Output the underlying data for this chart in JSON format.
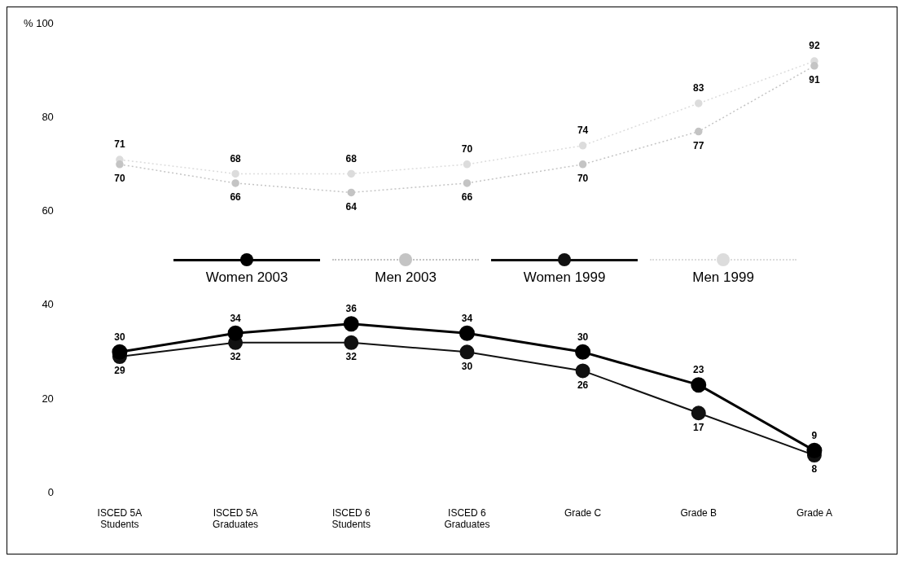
{
  "chart_data": {
    "type": "line",
    "categories": [
      "ISCED 5A\nStudents",
      "ISCED 5A\nGraduates",
      "ISCED 6\nStudents",
      "ISCED 6\nGraduates",
      "Grade C",
      "Grade B",
      "Grade A"
    ],
    "series": [
      {
        "name": "Women 2003",
        "color": "#000000",
        "values": [
          30,
          34,
          36,
          34,
          30,
          23,
          9
        ]
      },
      {
        "name": "Men 2003",
        "color": "#c4c4c4",
        "line_style": "dotted",
        "values": [
          70,
          66,
          64,
          66,
          70,
          77,
          91
        ]
      },
      {
        "name": "Women 1999",
        "color": "#111111",
        "values": [
          29,
          32,
          32,
          30,
          26,
          17,
          8
        ]
      },
      {
        "name": "Men 1999",
        "color": "#dcdcdc",
        "line_style": "dotted",
        "values": [
          71,
          68,
          68,
          70,
          74,
          83,
          92
        ]
      }
    ],
    "ylim": [
      0,
      100
    ],
    "yticks": [
      0,
      20,
      40,
      60,
      80,
      {
        "value": 100,
        "label": "% 100"
      }
    ],
    "grid": false,
    "legend": "center",
    "marker": "circle",
    "data_labels": true
  }
}
